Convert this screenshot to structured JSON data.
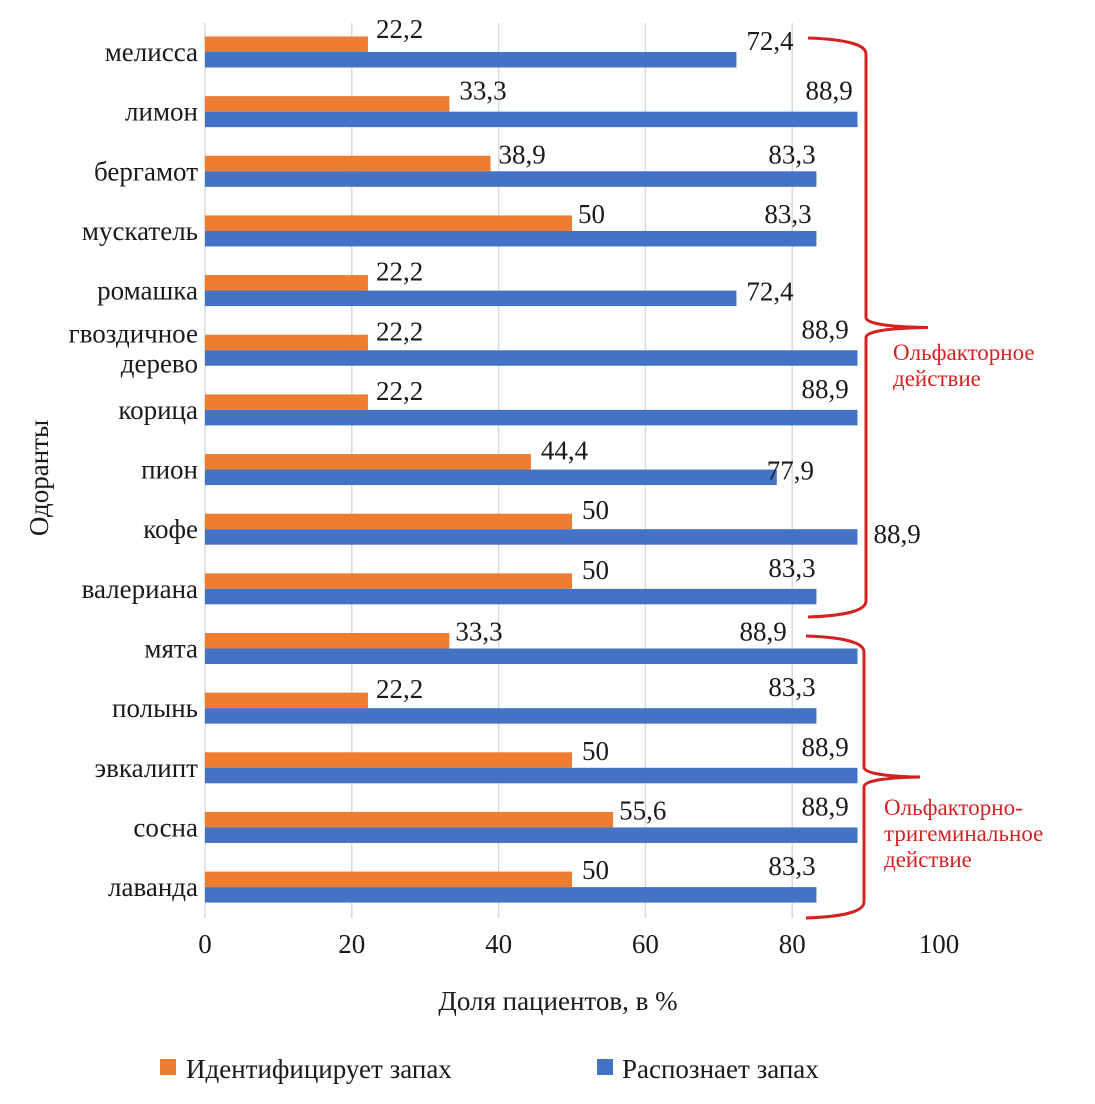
{
  "chart_data": {
    "type": "bar",
    "orientation": "horizontal",
    "title": "",
    "xlabel": "Доля пациентов, в %",
    "ylabel": "Одоранты",
    "xlim": [
      0,
      100
    ],
    "xticks": [
      "0",
      "20",
      "40",
      "60",
      "80",
      "100"
    ],
    "grid": true,
    "legend_position": "bottom",
    "categories": [
      "мелисса",
      "лимон",
      "бергамот",
      "мускатель",
      "ромашка",
      "гвоздичное дерево",
      "корица",
      "пион",
      "кофе",
      "валериана",
      "мята",
      "полынь",
      "эвкалипт",
      "сосна",
      "лаванда"
    ],
    "category_lines": [
      [
        "мелисса"
      ],
      [
        "лимон"
      ],
      [
        "бергамот"
      ],
      [
        "мускатель"
      ],
      [
        "ромашка"
      ],
      [
        "гвоздичное",
        "дерево"
      ],
      [
        "корица"
      ],
      [
        "пион"
      ],
      [
        "кофе"
      ],
      [
        "валериана"
      ],
      [
        "мята"
      ],
      [
        "полынь"
      ],
      [
        "эвкалипт"
      ],
      [
        "сосна"
      ],
      [
        "лаванда"
      ]
    ],
    "series": [
      {
        "name": "Идентифицирует запах",
        "color": "#ED7D31",
        "values": [
          22.2,
          33.3,
          38.9,
          50,
          22.2,
          22.2,
          22.2,
          44.4,
          50,
          50,
          33.3,
          22.2,
          50,
          55.6,
          50
        ],
        "labels": [
          "22,2",
          "33,3",
          "38,9",
          "50",
          "22,2",
          "22,2",
          "22,2",
          "44,4",
          "50",
          "50",
          "33,3",
          "22,2",
          "50",
          "55,6",
          "50"
        ]
      },
      {
        "name": "Распознает запах",
        "color": "#4472C4",
        "values": [
          72.4,
          88.9,
          83.3,
          83.3,
          72.4,
          88.9,
          88.9,
          77.9,
          88.9,
          83.3,
          88.9,
          83.3,
          88.9,
          88.9,
          83.3
        ],
        "labels": [
          "72,4",
          "88,9",
          "83,3",
          "83,3",
          "72,4",
          "88,9",
          "88,9",
          "77,9",
          "88,9",
          "83,3",
          "88,9",
          "83,3",
          "88,9",
          "88,9",
          "83,3"
        ]
      }
    ],
    "annotations": [
      {
        "text_lines": [
          "Ольфакторное",
          "действие"
        ],
        "from_category": "мелисса",
        "to_category": "валериана",
        "color": "#d42222"
      },
      {
        "text_lines": [
          "Ольфакторно-",
          "тригеминальное",
          "действие"
        ],
        "from_category": "мята",
        "to_category": "лаванда",
        "color": "#d42222"
      }
    ]
  }
}
